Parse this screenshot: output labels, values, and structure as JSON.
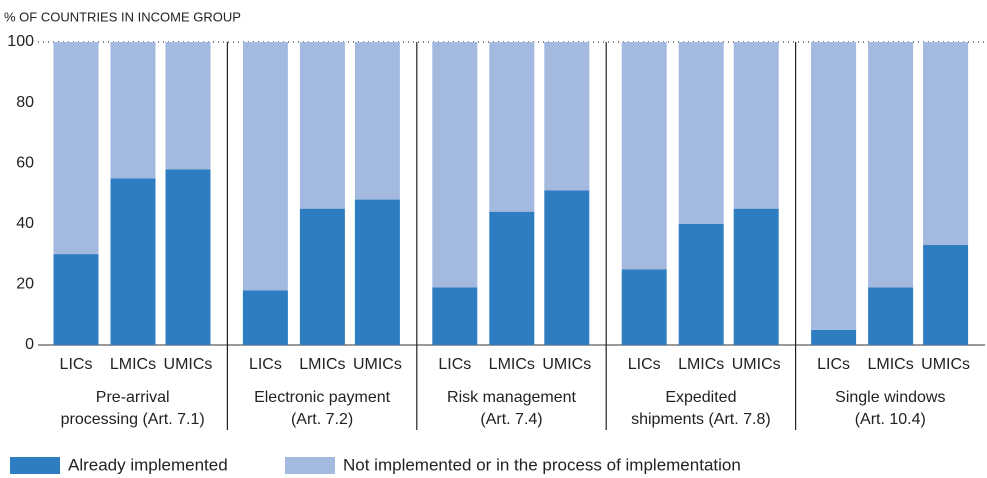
{
  "chart_data": {
    "type": "stacked_bar",
    "y_axis_label": "% OF COUNTRIES IN INCOME GROUP",
    "categories": [
      "LICs",
      "LMICs",
      "UMICs",
      "LICs",
      "LMICs",
      "UMICs",
      "LICs",
      "LMICs",
      "UMICs",
      "LICs",
      "LMICs",
      "UMICs",
      "LICs",
      "LMICs",
      "UMICs"
    ],
    "groups": [
      [
        "Pre-arrival",
        "processing (Art. 7.1)"
      ],
      [
        "Electronic payment",
        "(Art. 7.2)"
      ],
      [
        "Risk management",
        "(Art. 7.4)"
      ],
      [
        "Expedited",
        "shipments (Art. 7.8)"
      ],
      [
        "Single windows",
        "(Art. 10.4)"
      ]
    ],
    "series": [
      {
        "name": "Already implemented",
        "color": "#2f7dc1",
        "values": [
          30,
          55,
          58,
          18,
          45,
          48,
          19,
          44,
          51,
          25,
          40,
          45,
          5,
          19,
          33
        ]
      },
      {
        "name": "Not implemented or in the process of implementation",
        "color": "#a3b9e0",
        "values": [
          70,
          45,
          42,
          82,
          55,
          52,
          81,
          56,
          49,
          75,
          60,
          55,
          95,
          81,
          67
        ]
      }
    ],
    "ylim": [
      0,
      100
    ],
    "yticks": [
      0,
      20,
      40,
      60,
      80,
      100
    ],
    "legend": "bottom"
  }
}
